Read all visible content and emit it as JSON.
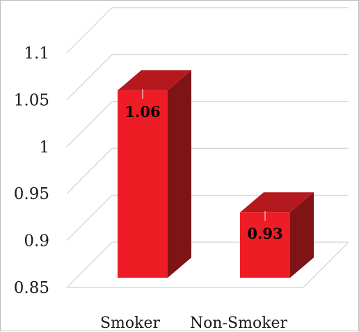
{
  "chart_data": {
    "type": "bar",
    "title": "",
    "xlabel": "",
    "ylabel": "",
    "categories": [
      "Smoker",
      "Non-Smoker"
    ],
    "values": [
      1.06,
      0.93
    ],
    "data_labels": [
      "1.06",
      "0.93"
    ],
    "ylim": [
      0.85,
      1.1
    ],
    "yticks": [
      0.85,
      0.9,
      0.95,
      1,
      1.05,
      1.1
    ],
    "ytick_labels": [
      "0.85",
      "0.9",
      "0.95",
      "1",
      "1.05",
      "1.1"
    ],
    "grid": true,
    "legend": "none",
    "style": "3d-column",
    "colors": {
      "front": "#ee1c25",
      "side": "#7f1416",
      "top": "#b5191d",
      "grid": "#d9d9d9"
    }
  }
}
